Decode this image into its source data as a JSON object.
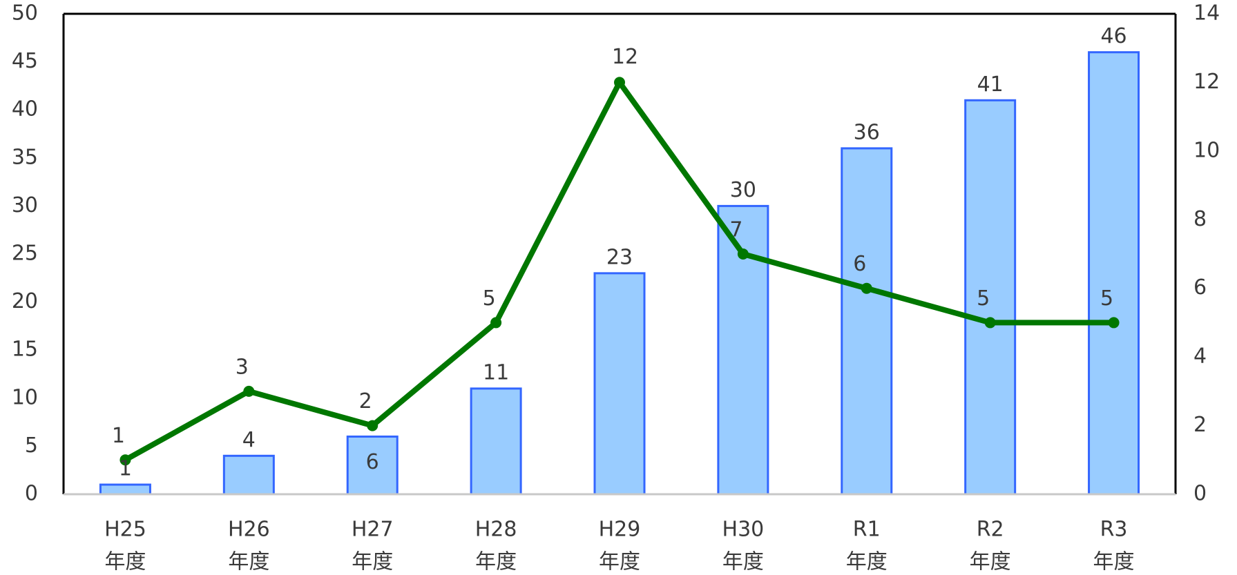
{
  "chart_data": {
    "type": "bar",
    "categories": [
      [
        "H25",
        "年度"
      ],
      [
        "H26",
        "年度"
      ],
      [
        "H27",
        "年度"
      ],
      [
        "H28",
        "年度"
      ],
      [
        "H29",
        "年度"
      ],
      [
        "H30",
        "年度"
      ],
      [
        "R1",
        "年度"
      ],
      [
        "R2",
        "年度"
      ],
      [
        "R3",
        "年度"
      ]
    ],
    "series": [
      {
        "type": "bar",
        "axis": "left",
        "values": [
          1,
          4,
          6,
          11,
          23,
          30,
          36,
          41,
          46
        ],
        "fill": "#99ccff",
        "stroke": "#3366ff"
      },
      {
        "type": "line",
        "axis": "right",
        "values": [
          1,
          3,
          2,
          5,
          12,
          7,
          6,
          5,
          5
        ],
        "color": "#007700"
      }
    ],
    "left_axis": {
      "min": 0,
      "max": 50,
      "step": 5
    },
    "right_axis": {
      "min": 0,
      "max": 14,
      "step": 2
    },
    "grid": false,
    "legend": "none"
  }
}
